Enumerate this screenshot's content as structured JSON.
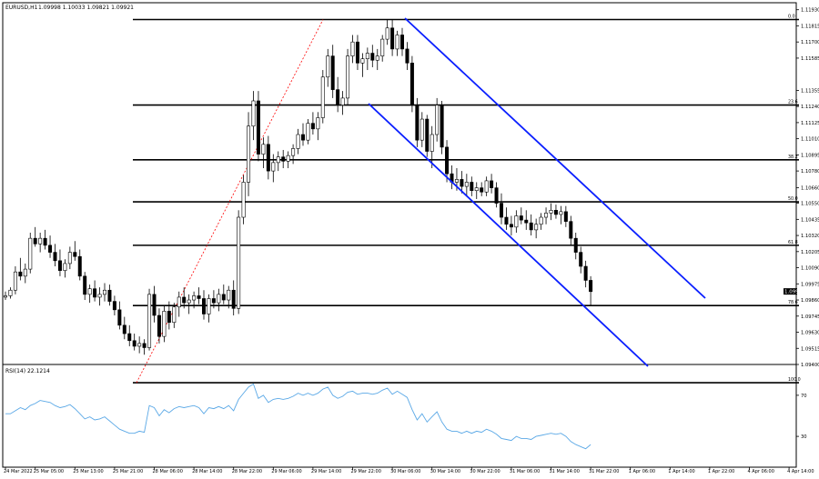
{
  "header": {
    "symbol": "EURUSD,H1",
    "ohlc": "1.09998 1.10033 1.09821 1.09921"
  },
  "colors": {
    "background": "#ffffff",
    "axis": "#000000",
    "bull_fill": "#ffffff",
    "bear_fill": "#000000",
    "fib_line": "#000000",
    "channel": "#0a1fff",
    "fib_trend": "#ff0000",
    "rsi_line": "#5aa8e6",
    "price_label_bg": "#000000",
    "price_label_fg": "#ffffff"
  },
  "chart_data": [
    {
      "type": "candlestick",
      "title": "",
      "xlabel": "",
      "ylabel": "",
      "ylim": [
        1.094,
        1.1198
      ],
      "grid": false,
      "y_ticks": [
        "1.11930",
        "1.11815",
        "1.11700",
        "1.11585",
        "1.11355",
        "1.11240",
        "1.11125",
        "1.11010",
        "1.10895",
        "1.10780",
        "1.10660",
        "1.10550",
        "1.10435",
        "1.10320",
        "1.10205",
        "1.10090",
        "1.09975",
        "1.09860",
        "1.09745",
        "1.09630",
        "1.09515",
        "1.09400"
      ],
      "x_ticks": [
        "24 Mar 2022",
        "25 Mar 05:00",
        "25 Mar 13:00",
        "25 Mar 21:00",
        "28 Mar 06:00",
        "28 Mar 14:00",
        "28 Mar 22:00",
        "29 Mar 06:00",
        "29 Mar 14:00",
        "29 Mar 22:00",
        "30 Mar 06:00",
        "30 Mar 14:00",
        "30 Mar 22:00",
        "31 Mar 06:00",
        "31 Mar 14:00",
        "31 Mar 22:00",
        "1 Apr 06:00",
        "1 Apr 14:00",
        "1 Apr 22:00",
        "4 Apr 06:00",
        "4 Apr 14:00"
      ],
      "current_price": "1.09921",
      "candles": [
        [
          1.0988,
          1.0992,
          1.0986,
          1.0989
        ],
        [
          1.0989,
          1.0995,
          1.0987,
          1.0993
        ],
        [
          1.0993,
          1.101,
          1.099,
          1.1006
        ],
        [
          1.1006,
          1.1016,
          1.1,
          1.1003
        ],
        [
          1.1003,
          1.1012,
          1.0998,
          1.1008
        ],
        [
          1.1008,
          1.1034,
          1.1005,
          1.103
        ],
        [
          1.103,
          1.1038,
          1.1024,
          1.1026
        ],
        [
          1.1026,
          1.1034,
          1.102,
          1.103
        ],
        [
          1.103,
          1.1036,
          1.1022,
          1.1025
        ],
        [
          1.1025,
          1.1032,
          1.1016,
          1.102
        ],
        [
          1.102,
          1.1026,
          1.101,
          1.1014
        ],
        [
          1.1014,
          1.1022,
          1.1003,
          1.1007
        ],
        [
          1.1007,
          1.1015,
          1.1002,
          1.1012
        ],
        [
          1.1012,
          1.1024,
          1.1008,
          1.102
        ],
        [
          1.102,
          1.1028,
          1.1014,
          1.1017
        ],
        [
          1.1017,
          1.1022,
          1.1,
          1.1003
        ],
        [
          1.1003,
          1.1006,
          1.0986,
          1.099
        ],
        [
          1.099,
          1.0997,
          1.0984,
          1.0994
        ],
        [
          1.0994,
          1.1,
          1.0985,
          1.0988
        ],
        [
          1.0988,
          1.0995,
          1.0982,
          1.099
        ],
        [
          1.099,
          1.0998,
          1.0985,
          1.0993
        ],
        [
          1.0993,
          1.0997,
          1.0982,
          1.0985
        ],
        [
          1.0985,
          1.0989,
          1.0975,
          1.0979
        ],
        [
          1.0979,
          1.0985,
          1.0965,
          1.0968
        ],
        [
          1.0968,
          1.0974,
          1.0958,
          1.0962
        ],
        [
          1.0962,
          1.0968,
          1.0953,
          1.0957
        ],
        [
          1.0957,
          1.0962,
          1.095,
          1.0953
        ],
        [
          1.0953,
          1.096,
          1.0948,
          1.0955
        ],
        [
          1.0955,
          1.0958,
          1.0947,
          1.0952
        ],
        [
          1.0952,
          1.0994,
          1.095,
          1.099
        ],
        [
          1.099,
          1.0996,
          1.097,
          1.0975
        ],
        [
          1.0975,
          1.098,
          1.0955,
          1.096
        ],
        [
          1.096,
          1.0982,
          1.0956,
          1.0978
        ],
        [
          1.0978,
          1.0985,
          1.0965,
          1.097
        ],
        [
          1.097,
          1.0984,
          1.0966,
          1.0981
        ],
        [
          1.0981,
          1.0992,
          1.0974,
          1.0988
        ],
        [
          1.0988,
          1.0995,
          1.098,
          1.0984
        ],
        [
          1.0984,
          1.099,
          1.0976,
          1.0986
        ],
        [
          1.0986,
          1.0992,
          1.098,
          1.0989
        ],
        [
          1.0989,
          1.0995,
          1.0983,
          1.0987
        ],
        [
          1.0987,
          1.0993,
          1.0972,
          1.0976
        ],
        [
          1.0976,
          1.099,
          1.097,
          1.0987
        ],
        [
          1.0987,
          1.0993,
          1.098,
          1.0984
        ],
        [
          1.0984,
          1.0994,
          1.0978,
          1.099
        ],
        [
          1.099,
          1.0997,
          1.0983,
          1.0986
        ],
        [
          1.0986,
          1.0996,
          1.098,
          1.0993
        ],
        [
          1.0993,
          1.1,
          1.0975,
          1.098
        ],
        [
          1.098,
          1.105,
          1.0976,
          1.1045
        ],
        [
          1.1045,
          1.1075,
          1.104,
          1.107
        ],
        [
          1.107,
          1.112,
          1.106,
          1.111
        ],
        [
          1.111,
          1.1135,
          1.11,
          1.1128
        ],
        [
          1.1128,
          1.1135,
          1.1085,
          1.109
        ],
        [
          1.109,
          1.1102,
          1.108,
          1.1097
        ],
        [
          1.1097,
          1.1103,
          1.1072,
          1.1078
        ],
        [
          1.1078,
          1.109,
          1.107,
          1.1084
        ],
        [
          1.1084,
          1.1092,
          1.1078,
          1.1088
        ],
        [
          1.1088,
          1.1093,
          1.108,
          1.1085
        ],
        [
          1.1085,
          1.1092,
          1.108,
          1.1089
        ],
        [
          1.1089,
          1.1097,
          1.1083,
          1.1094
        ],
        [
          1.1094,
          1.1108,
          1.109,
          1.1104
        ],
        [
          1.1104,
          1.1112,
          1.1096,
          1.11
        ],
        [
          1.11,
          1.1115,
          1.1097,
          1.1112
        ],
        [
          1.1112,
          1.112,
          1.1104,
          1.1108
        ],
        [
          1.1108,
          1.112,
          1.11,
          1.1116
        ],
        [
          1.1116,
          1.115,
          1.1112,
          1.1145
        ],
        [
          1.1145,
          1.1165,
          1.1138,
          1.116
        ],
        [
          1.116,
          1.1168,
          1.113,
          1.1136
        ],
        [
          1.1136,
          1.1145,
          1.112,
          1.1125
        ],
        [
          1.1125,
          1.1135,
          1.1118,
          1.113
        ],
        [
          1.113,
          1.1165,
          1.1125,
          1.116
        ],
        [
          1.116,
          1.1175,
          1.1155,
          1.117
        ],
        [
          1.117,
          1.1175,
          1.115,
          1.1155
        ],
        [
          1.1155,
          1.1162,
          1.1145,
          1.1158
        ],
        [
          1.1158,
          1.1166,
          1.115,
          1.1162
        ],
        [
          1.1162,
          1.1168,
          1.1152,
          1.1157
        ],
        [
          1.1157,
          1.1165,
          1.115,
          1.116
        ],
        [
          1.116,
          1.1175,
          1.1156,
          1.1172
        ],
        [
          1.1172,
          1.1186,
          1.1168,
          1.118
        ],
        [
          1.118,
          1.1186,
          1.116,
          1.1165
        ],
        [
          1.1165,
          1.1178,
          1.116,
          1.1175
        ],
        [
          1.1175,
          1.118,
          1.116,
          1.1165
        ],
        [
          1.1165,
          1.117,
          1.115,
          1.1155
        ],
        [
          1.1155,
          1.116,
          1.112,
          1.1125
        ],
        [
          1.1125,
          1.113,
          1.1095,
          1.11
        ],
        [
          1.11,
          1.112,
          1.1095,
          1.1115
        ],
        [
          1.1115,
          1.1118,
          1.1088,
          1.1092
        ],
        [
          1.1092,
          1.111,
          1.108,
          1.1104
        ],
        [
          1.1104,
          1.113,
          1.1099,
          1.1125
        ],
        [
          1.1125,
          1.1128,
          1.109,
          1.1095
        ],
        [
          1.1095,
          1.11,
          1.107,
          1.1076
        ],
        [
          1.1076,
          1.1082,
          1.1065,
          1.107
        ],
        [
          1.107,
          1.108,
          1.1064,
          1.1072
        ],
        [
          1.1072,
          1.1078,
          1.1062,
          1.1067
        ],
        [
          1.1067,
          1.1076,
          1.106,
          1.107
        ],
        [
          1.107,
          1.1074,
          1.106,
          1.1064
        ],
        [
          1.1064,
          1.107,
          1.1058,
          1.1066
        ],
        [
          1.1066,
          1.107,
          1.106,
          1.1063
        ],
        [
          1.1063,
          1.1074,
          1.106,
          1.1071
        ],
        [
          1.1071,
          1.1076,
          1.1062,
          1.1066
        ],
        [
          1.1066,
          1.107,
          1.1052,
          1.1055
        ],
        [
          1.1055,
          1.1062,
          1.104,
          1.1045
        ],
        [
          1.1045,
          1.1052,
          1.1036,
          1.104
        ],
        [
          1.104,
          1.1046,
          1.1032,
          1.1038
        ],
        [
          1.1038,
          1.105,
          1.1034,
          1.1046
        ],
        [
          1.1046,
          1.1052,
          1.104,
          1.1043
        ],
        [
          1.1043,
          1.105,
          1.1036,
          1.1041
        ],
        [
          1.1041,
          1.1047,
          1.1032,
          1.1036
        ],
        [
          1.1036,
          1.1044,
          1.103,
          1.104
        ],
        [
          1.104,
          1.1048,
          1.1036,
          1.1045
        ],
        [
          1.1045,
          1.1052,
          1.104,
          1.1048
        ],
        [
          1.1048,
          1.1055,
          1.1043,
          1.105
        ],
        [
          1.105,
          1.1054,
          1.1044,
          1.1047
        ],
        [
          1.1047,
          1.1053,
          1.104,
          1.1049
        ],
        [
          1.1049,
          1.1053,
          1.1038,
          1.1042
        ],
        [
          1.1042,
          1.1046,
          1.1025,
          1.103
        ],
        [
          1.103,
          1.1034,
          1.1015,
          1.102
        ],
        [
          1.102,
          1.1024,
          1.1005,
          1.101
        ],
        [
          1.101,
          1.1014,
          1.0995,
          1.1
        ],
        [
          1.1,
          1.1003,
          1.0982,
          1.0992
        ]
      ]
    },
    {
      "type": "line",
      "title": "RSI(14) 22.1214",
      "ylim": [
        0,
        100
      ],
      "y_ticks": [
        "70",
        "30"
      ],
      "grid": false,
      "series": [
        {
          "values": [
            52,
            52,
            55,
            58,
            56,
            60,
            62,
            65,
            64,
            63,
            60,
            58,
            59,
            61,
            57,
            52,
            47,
            49,
            46,
            47,
            49,
            45,
            41,
            37,
            35,
            33,
            33,
            35,
            34,
            60,
            58,
            50,
            56,
            53,
            57,
            59,
            58,
            59,
            60,
            58,
            52,
            58,
            57,
            59,
            57,
            60,
            55,
            66,
            72,
            78,
            81,
            67,
            70,
            63,
            66,
            67,
            66,
            67,
            69,
            72,
            70,
            72,
            70,
            72,
            76,
            78,
            70,
            67,
            69,
            73,
            74,
            71,
            72,
            72,
            71,
            72,
            75,
            77,
            71,
            74,
            71,
            68,
            56,
            46,
            52,
            44,
            49,
            54,
            44,
            37,
            35,
            35,
            33,
            35,
            33,
            35,
            34,
            37,
            35,
            32,
            28,
            27,
            26,
            30,
            28,
            28,
            27,
            30,
            31,
            32,
            33,
            32,
            33,
            30,
            25,
            22,
            20,
            18,
            22
          ]
        }
      ]
    }
  ],
  "fib_levels": [
    {
      "price": 1.1186,
      "label": "0.0"
    },
    {
      "price": 1.1125,
      "label": "23.6"
    },
    {
      "price": 1.1086,
      "label": "38.2"
    },
    {
      "price": 1.1056,
      "label": "50.0"
    },
    {
      "price": 1.1025,
      "label": "61.8"
    },
    {
      "price": 1.0982,
      "label": "78.6"
    },
    {
      "price": 1.0927,
      "label": "100.0"
    }
  ],
  "x_tick_bars": [
    0,
    6,
    14,
    22,
    30,
    38,
    46,
    54,
    62,
    70,
    78,
    86,
    94,
    102,
    110,
    118,
    126,
    134,
    142,
    150,
    158
  ]
}
